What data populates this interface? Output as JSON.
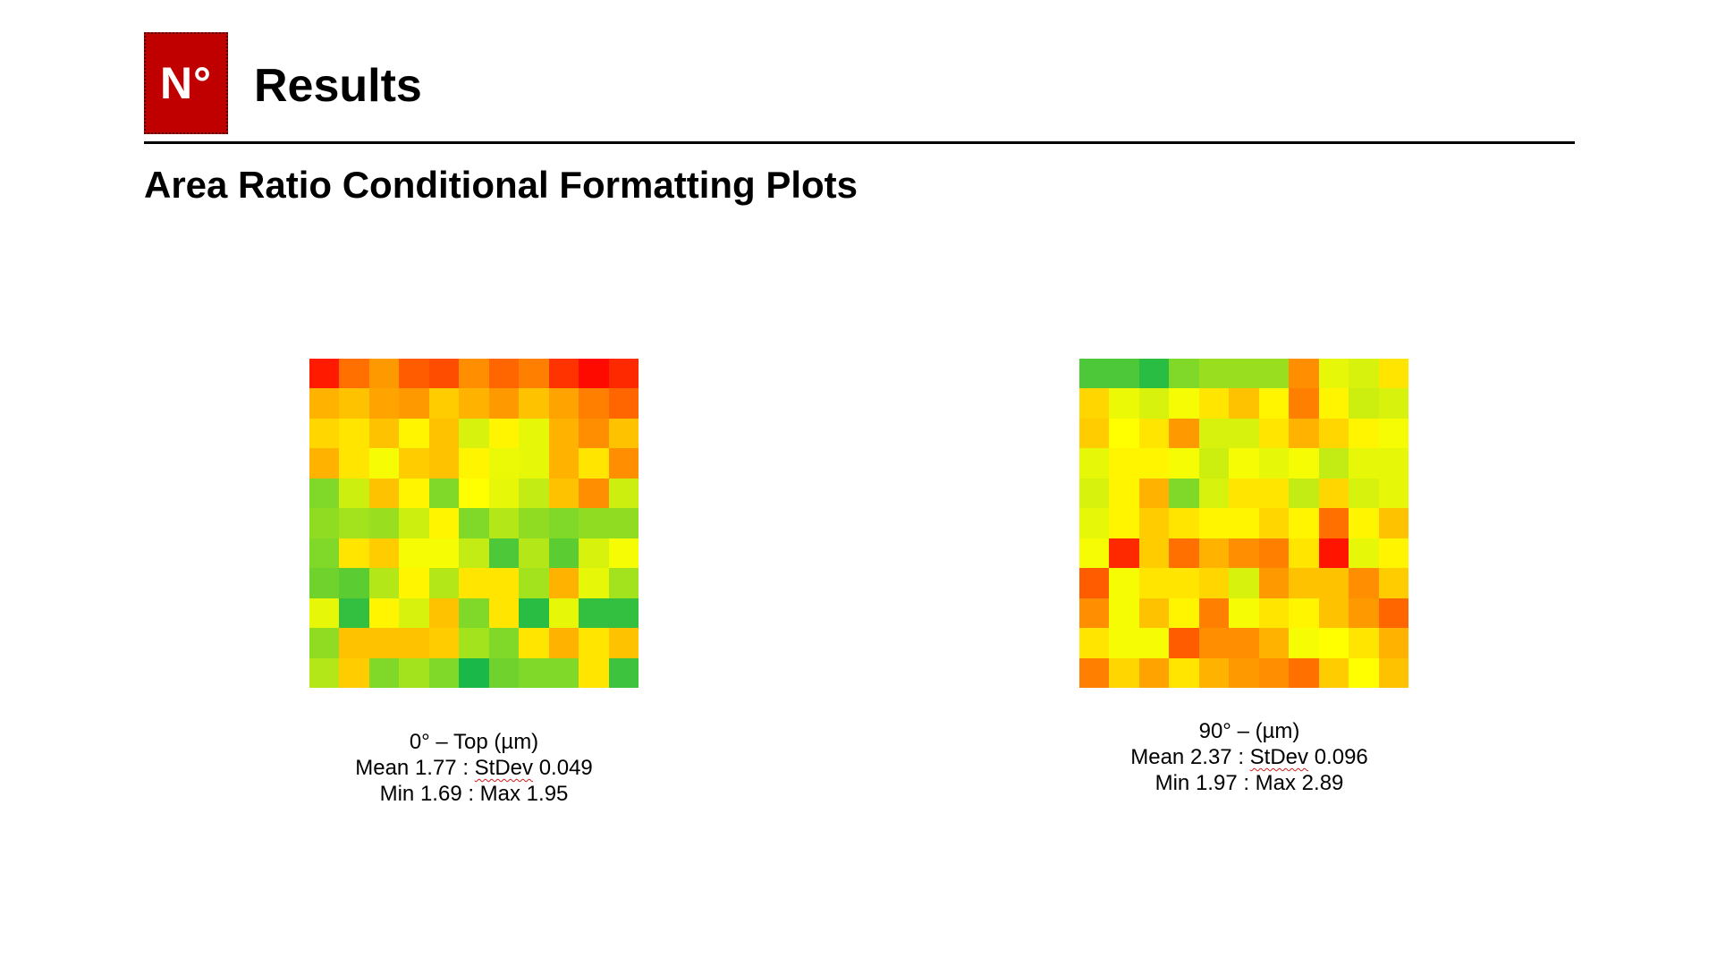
{
  "header": {
    "logo_text": "N°",
    "logo_color": "#c00000",
    "title": "Results",
    "subtitle": "Area Ratio Conditional Formatting Plots"
  },
  "chart_data": [
    {
      "type": "heatmap",
      "title": "0° – Top (µm)",
      "rows": 11,
      "cols": 11,
      "color_scale": [
        "#00b050",
        "#ffff00",
        "#ff0000"
      ],
      "value_range": [
        1.69,
        1.95
      ],
      "stats": {
        "mean_label": "Mean 1.77",
        "stdev_label": "StDev",
        "stdev_value": "0.049",
        "min_max_label": "Min 1.69 : Max 1.95"
      },
      "values": [
        [
          0.95,
          0.78,
          0.7,
          0.82,
          0.85,
          0.72,
          0.8,
          0.75,
          0.9,
          0.98,
          0.92
        ],
        [
          0.65,
          0.62,
          0.68,
          0.7,
          0.6,
          0.65,
          0.7,
          0.62,
          0.68,
          0.75,
          0.8
        ],
        [
          0.58,
          0.55,
          0.62,
          0.52,
          0.62,
          0.42,
          0.52,
          0.45,
          0.65,
          0.72,
          0.62
        ],
        [
          0.65,
          0.55,
          0.48,
          0.6,
          0.62,
          0.52,
          0.46,
          0.45,
          0.65,
          0.55,
          0.72
        ],
        [
          0.25,
          0.4,
          0.62,
          0.52,
          0.25,
          0.5,
          0.45,
          0.38,
          0.62,
          0.72,
          0.4
        ],
        [
          0.28,
          0.32,
          0.3,
          0.4,
          0.52,
          0.25,
          0.35,
          0.28,
          0.25,
          0.28,
          0.28
        ],
        [
          0.25,
          0.55,
          0.6,
          0.48,
          0.48,
          0.38,
          0.15,
          0.35,
          0.18,
          0.42,
          0.48
        ],
        [
          0.22,
          0.18,
          0.35,
          0.52,
          0.35,
          0.55,
          0.55,
          0.32,
          0.65,
          0.45,
          0.32
        ],
        [
          0.45,
          0.1,
          0.52,
          0.42,
          0.62,
          0.25,
          0.55,
          0.08,
          0.45,
          0.1,
          0.1
        ],
        [
          0.28,
          0.62,
          0.62,
          0.62,
          0.6,
          0.32,
          0.25,
          0.55,
          0.65,
          0.55,
          0.62
        ],
        [
          0.35,
          0.6,
          0.25,
          0.32,
          0.25,
          0.05,
          0.22,
          0.25,
          0.25,
          0.55,
          0.12
        ]
      ]
    },
    {
      "type": "heatmap",
      "title": "90° – (µm)",
      "rows": 11,
      "cols": 11,
      "color_scale": [
        "#00b050",
        "#ffff00",
        "#ff0000"
      ],
      "value_range": [
        1.97,
        2.89
      ],
      "stats": {
        "mean_label": "Mean 2.37",
        "stdev_label": "StDev",
        "stdev_value": "0.096",
        "min_max_label": "Min 1.97 : Max 2.89"
      },
      "values": [
        [
          0.15,
          0.15,
          0.08,
          0.25,
          0.3,
          0.3,
          0.3,
          0.72,
          0.45,
          0.42,
          0.55
        ],
        [
          0.58,
          0.46,
          0.42,
          0.48,
          0.55,
          0.62,
          0.52,
          0.75,
          0.52,
          0.4,
          0.42
        ],
        [
          0.6,
          0.5,
          0.55,
          0.7,
          0.42,
          0.42,
          0.55,
          0.65,
          0.58,
          0.52,
          0.48
        ],
        [
          0.45,
          0.52,
          0.52,
          0.48,
          0.4,
          0.48,
          0.45,
          0.48,
          0.38,
          0.45,
          0.45
        ],
        [
          0.42,
          0.52,
          0.65,
          0.25,
          0.42,
          0.55,
          0.55,
          0.38,
          0.58,
          0.42,
          0.45
        ],
        [
          0.45,
          0.52,
          0.6,
          0.55,
          0.52,
          0.52,
          0.58,
          0.52,
          0.78,
          0.52,
          0.62
        ],
        [
          0.48,
          0.92,
          0.6,
          0.78,
          0.65,
          0.72,
          0.75,
          0.55,
          0.96,
          0.45,
          0.52
        ],
        [
          0.82,
          0.48,
          0.55,
          0.55,
          0.58,
          0.42,
          0.7,
          0.62,
          0.62,
          0.72,
          0.6
        ],
        [
          0.72,
          0.48,
          0.62,
          0.52,
          0.75,
          0.48,
          0.55,
          0.52,
          0.62,
          0.7,
          0.8
        ],
        [
          0.55,
          0.48,
          0.48,
          0.82,
          0.72,
          0.72,
          0.65,
          0.48,
          0.5,
          0.55,
          0.65
        ],
        [
          0.75,
          0.58,
          0.68,
          0.55,
          0.65,
          0.7,
          0.72,
          0.78,
          0.6,
          0.5,
          0.62
        ]
      ]
    }
  ]
}
